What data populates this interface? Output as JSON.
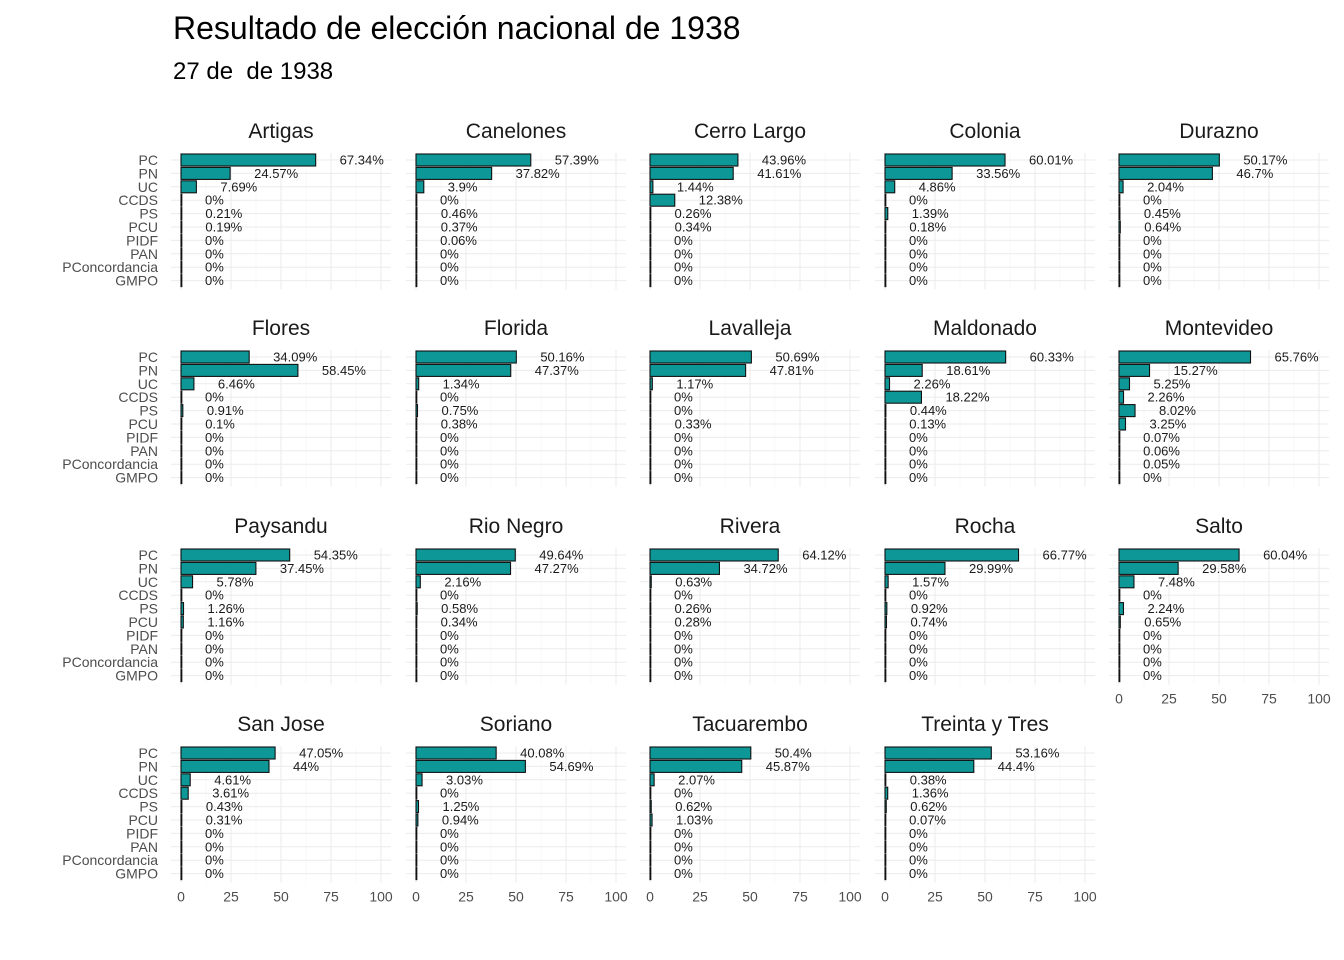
{
  "title": "Resultado de elección nacional de 1938",
  "subtitle": "27 de  de 1938",
  "colors": {
    "bar_fill": "#0d9797",
    "bar_stroke": "#111111",
    "grid": "#ebebeb"
  },
  "chart_data": {
    "type": "bar",
    "orientation": "horizontal",
    "facet": "department",
    "categories": [
      "PC",
      "PN",
      "UC",
      "CCDS",
      "PS",
      "PCU",
      "PIDF",
      "PAN",
      "PConcordancia",
      "GMPO"
    ],
    "xlim": [
      0,
      100
    ],
    "xticks": [
      "0",
      "25",
      "50",
      "75",
      "100"
    ],
    "grid": true,
    "panels": [
      {
        "name": "Artigas",
        "values": [
          67.34,
          24.57,
          7.69,
          0,
          0.21,
          0.19,
          0,
          0,
          0,
          0
        ],
        "labels": [
          "67.34%",
          "24.57%",
          "7.69%",
          "0%",
          "0.21%",
          "0.19%",
          "0%",
          "0%",
          "0%",
          "0%"
        ]
      },
      {
        "name": "Canelones",
        "values": [
          57.39,
          37.82,
          3.9,
          0,
          0.46,
          0.37,
          0.06,
          0,
          0,
          0
        ],
        "labels": [
          "57.39%",
          "37.82%",
          "3.9%",
          "0%",
          "0.46%",
          "0.37%",
          "0.06%",
          "0%",
          "0%",
          "0%"
        ]
      },
      {
        "name": "Cerro Largo",
        "values": [
          43.96,
          41.61,
          1.44,
          12.38,
          0.26,
          0.34,
          0,
          0,
          0,
          0
        ],
        "labels": [
          "43.96%",
          "41.61%",
          "1.44%",
          "12.38%",
          "0.26%",
          "0.34%",
          "0%",
          "0%",
          "0%",
          "0%"
        ]
      },
      {
        "name": "Colonia",
        "values": [
          60.01,
          33.56,
          4.86,
          0,
          1.39,
          0.18,
          0,
          0,
          0,
          0
        ],
        "labels": [
          "60.01%",
          "33.56%",
          "4.86%",
          "0%",
          "1.39%",
          "0.18%",
          "0%",
          "0%",
          "0%",
          "0%"
        ]
      },
      {
        "name": "Durazno",
        "values": [
          50.17,
          46.7,
          2.04,
          0,
          0.45,
          0.64,
          0,
          0,
          0,
          0
        ],
        "labels": [
          "50.17%",
          "46.7%",
          "2.04%",
          "0%",
          "0.45%",
          "0.64%",
          "0%",
          "0%",
          "0%",
          "0%"
        ]
      },
      {
        "name": "Flores",
        "values": [
          34.09,
          58.45,
          6.46,
          0,
          0.91,
          0.1,
          0,
          0,
          0,
          0
        ],
        "labels": [
          "34.09%",
          "58.45%",
          "6.46%",
          "0%",
          "0.91%",
          "0.1%",
          "0%",
          "0%",
          "0%",
          "0%"
        ]
      },
      {
        "name": "Florida",
        "values": [
          50.16,
          47.37,
          1.34,
          0,
          0.75,
          0.38,
          0,
          0,
          0,
          0
        ],
        "labels": [
          "50.16%",
          "47.37%",
          "1.34%",
          "0%",
          "0.75%",
          "0.38%",
          "0%",
          "0%",
          "0%",
          "0%"
        ]
      },
      {
        "name": "Lavalleja",
        "values": [
          50.69,
          47.81,
          1.17,
          0,
          0,
          0.33,
          0,
          0,
          0,
          0
        ],
        "labels": [
          "50.69%",
          "47.81%",
          "1.17%",
          "0%",
          "0%",
          "0.33%",
          "0%",
          "0%",
          "0%",
          "0%"
        ]
      },
      {
        "name": "Maldonado",
        "values": [
          60.33,
          18.61,
          2.26,
          18.22,
          0.44,
          0.13,
          0,
          0,
          0,
          0
        ],
        "labels": [
          "60.33%",
          "18.61%",
          "2.26%",
          "18.22%",
          "0.44%",
          "0.13%",
          "0%",
          "0%",
          "0%",
          "0%"
        ]
      },
      {
        "name": "Montevideo",
        "values": [
          65.76,
          15.27,
          5.25,
          2.26,
          8.02,
          3.25,
          0.07,
          0.06,
          0.05,
          0
        ],
        "labels": [
          "65.76%",
          "15.27%",
          "5.25%",
          "2.26%",
          "8.02%",
          "3.25%",
          "0.07%",
          "0.06%",
          "0.05%",
          "0%"
        ]
      },
      {
        "name": "Paysandu",
        "values": [
          54.35,
          37.45,
          5.78,
          0,
          1.26,
          1.16,
          0,
          0,
          0,
          0
        ],
        "labels": [
          "54.35%",
          "37.45%",
          "5.78%",
          "0%",
          "1.26%",
          "1.16%",
          "0%",
          "0%",
          "0%",
          "0%"
        ]
      },
      {
        "name": "Rio Negro",
        "values": [
          49.64,
          47.27,
          2.16,
          0,
          0.58,
          0.34,
          0,
          0,
          0,
          0
        ],
        "labels": [
          "49.64%",
          "47.27%",
          "2.16%",
          "0%",
          "0.58%",
          "0.34%",
          "0%",
          "0%",
          "0%",
          "0%"
        ]
      },
      {
        "name": "Rivera",
        "values": [
          64.12,
          34.72,
          0.63,
          0,
          0.26,
          0.28,
          0,
          0,
          0,
          0
        ],
        "labels": [
          "64.12%",
          "34.72%",
          "0.63%",
          "0%",
          "0.26%",
          "0.28%",
          "0%",
          "0%",
          "0%",
          "0%"
        ]
      },
      {
        "name": "Rocha",
        "values": [
          66.77,
          29.99,
          1.57,
          0,
          0.92,
          0.74,
          0,
          0,
          0,
          0
        ],
        "labels": [
          "66.77%",
          "29.99%",
          "1.57%",
          "0%",
          "0.92%",
          "0.74%",
          "0%",
          "0%",
          "0%",
          "0%"
        ]
      },
      {
        "name": "Salto",
        "values": [
          60.04,
          29.58,
          7.48,
          0,
          2.24,
          0.65,
          0,
          0,
          0,
          0
        ],
        "labels": [
          "60.04%",
          "29.58%",
          "7.48%",
          "0%",
          "2.24%",
          "0.65%",
          "0%",
          "0%",
          "0%",
          "0%"
        ]
      },
      {
        "name": "San Jose",
        "values": [
          47.05,
          44,
          4.61,
          3.61,
          0.43,
          0.31,
          0,
          0,
          0,
          0
        ],
        "labels": [
          "47.05%",
          "44%",
          "4.61%",
          "3.61%",
          "0.43%",
          "0.31%",
          "0%",
          "0%",
          "0%",
          "0%"
        ]
      },
      {
        "name": "Soriano",
        "values": [
          40.08,
          54.69,
          3.03,
          0,
          1.25,
          0.94,
          0,
          0,
          0,
          0
        ],
        "labels": [
          "40.08%",
          "54.69%",
          "3.03%",
          "0%",
          "1.25%",
          "0.94%",
          "0%",
          "0%",
          "0%",
          "0%"
        ]
      },
      {
        "name": "Tacuarembo",
        "values": [
          50.4,
          45.87,
          2.07,
          0,
          0.62,
          1.03,
          0,
          0,
          0,
          0
        ],
        "labels": [
          "50.4%",
          "45.87%",
          "2.07%",
          "0%",
          "0.62%",
          "1.03%",
          "0%",
          "0%",
          "0%",
          "0%"
        ]
      },
      {
        "name": "Treinta y Tres",
        "values": [
          53.16,
          44.4,
          0.38,
          1.36,
          0.62,
          0.07,
          0,
          0,
          0,
          0
        ],
        "labels": [
          "53.16%",
          "44.4%",
          "0.38%",
          "1.36%",
          "0.62%",
          "0.07%",
          "0%",
          "0%",
          "0%",
          "0%"
        ]
      }
    ]
  }
}
